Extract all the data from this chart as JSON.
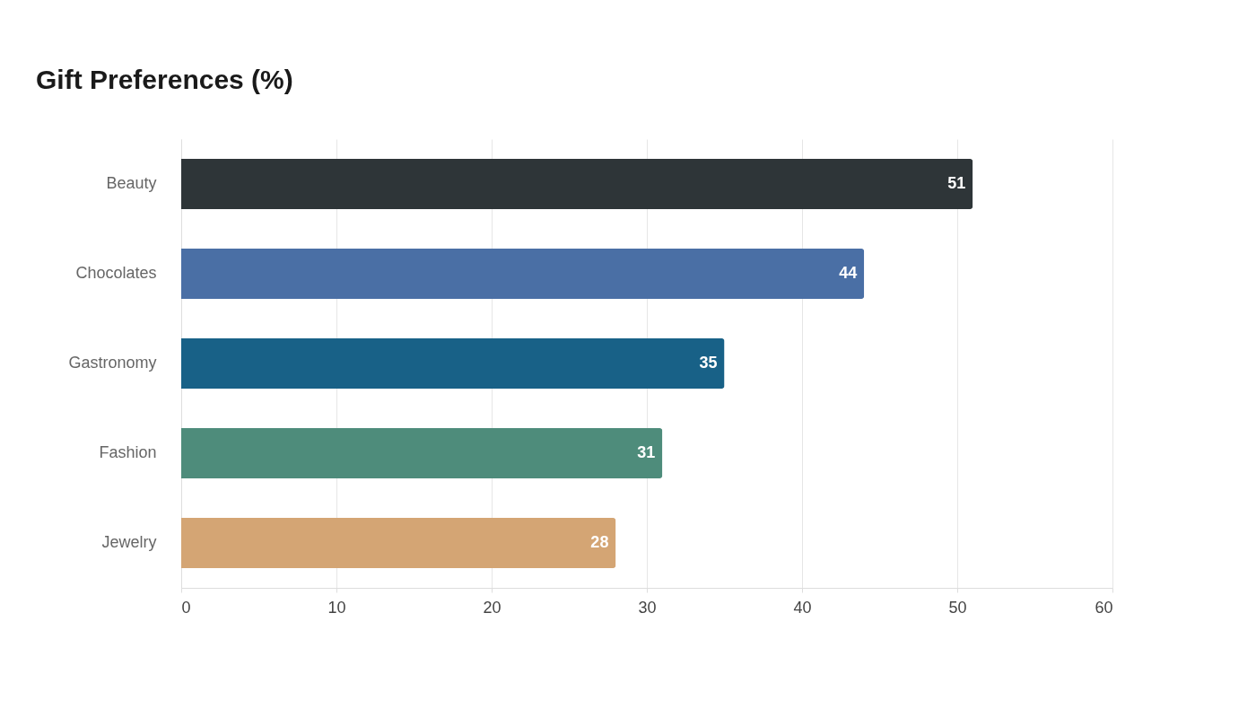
{
  "chart_data": {
    "type": "bar",
    "orientation": "horizontal",
    "title": "Gift Preferences (%)",
    "categories": [
      "Beauty",
      "Chocolates",
      "Gastronomy",
      "Fashion",
      "Jewelry"
    ],
    "values": [
      51,
      44,
      35,
      31,
      28
    ],
    "colors": [
      "#2e3538",
      "#4a6fa5",
      "#186187",
      "#4e8c7b",
      "#d4a574"
    ],
    "xlim": [
      0,
      60
    ],
    "xticks": [
      0,
      10,
      20,
      30,
      40,
      50,
      60
    ],
    "grid": "x",
    "data_labels": true
  }
}
